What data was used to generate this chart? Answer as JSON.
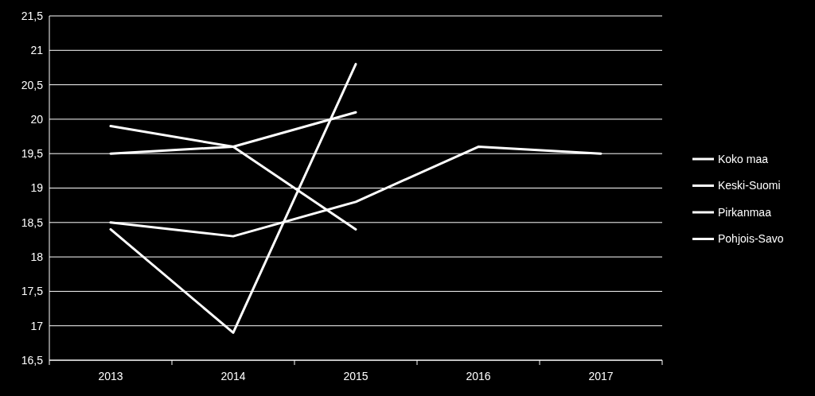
{
  "chart_data": {
    "type": "line",
    "categories": [
      "2013",
      "2014",
      "2015",
      "2016",
      "2017"
    ],
    "series": [
      {
        "name": "Koko maa",
        "color": "#ffffff",
        "values": [
          18.5,
          18.3,
          18.8,
          19.6,
          19.5
        ]
      },
      {
        "name": "Keski-Suomi",
        "color": "#ffffff",
        "values": [
          19.9,
          19.6,
          18.4,
          null,
          null
        ]
      },
      {
        "name": "Pirkanmaa",
        "color": "#ffffff",
        "values": [
          19.5,
          19.6,
          20.1,
          null,
          null
        ]
      },
      {
        "name": "Pohjois-Savo",
        "color": "#ffffff",
        "values": [
          18.4,
          16.9,
          20.8,
          null,
          null
        ]
      }
    ],
    "ylim": [
      16.5,
      21.5
    ],
    "yticks": [
      {
        "value": 16.5,
        "label": "16,5"
      },
      17,
      {
        "value": 17.5,
        "label": "17,5"
      },
      18,
      {
        "value": 18.5,
        "label": "18,5"
      },
      19,
      {
        "value": 19.5,
        "label": "19,5"
      },
      20,
      {
        "value": 20.5,
        "label": "20,5"
      },
      21,
      {
        "value": 21.5,
        "label": "21,5"
      }
    ],
    "grid": "y",
    "legend": "right",
    "marker": "none",
    "line_style": "solid"
  }
}
